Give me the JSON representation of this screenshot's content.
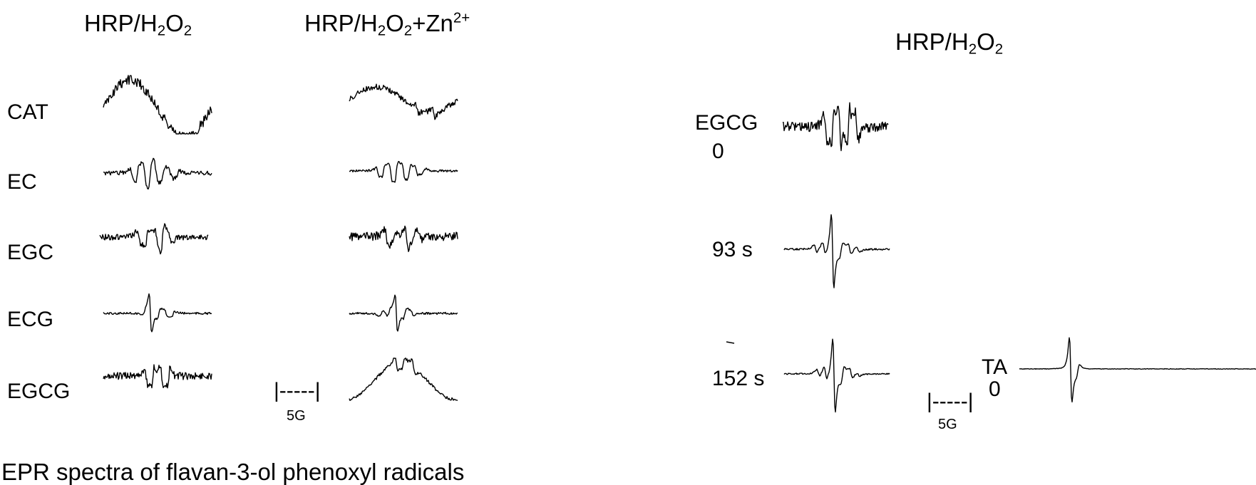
{
  "headers": {
    "left": {
      "base": "HRP/H",
      "sub1": "2",
      "mid": "O",
      "sub2": "2"
    },
    "middle": {
      "base": "HRP/H",
      "sub1": "2",
      "mid": "O",
      "sub2": "2",
      "tail": "+Zn",
      "sup": "2+"
    },
    "right": {
      "base": "HRP/H",
      "sub1": "2",
      "mid": "O",
      "sub2": "2"
    }
  },
  "row_labels": [
    "CAT",
    "EC",
    "EGC",
    "ECG",
    "EGCG"
  ],
  "time_labels": {
    "t0_name": "EGCG",
    "t0_value": "0",
    "t1": "93 s",
    "t2": "152 s"
  },
  "ta_label": {
    "name": "TA",
    "value": "0"
  },
  "scale_bar": {
    "bar": "|-----|",
    "unit": "5G"
  },
  "caption": "EPR spectra of flavan-3-ol phenoxyl radicals"
}
